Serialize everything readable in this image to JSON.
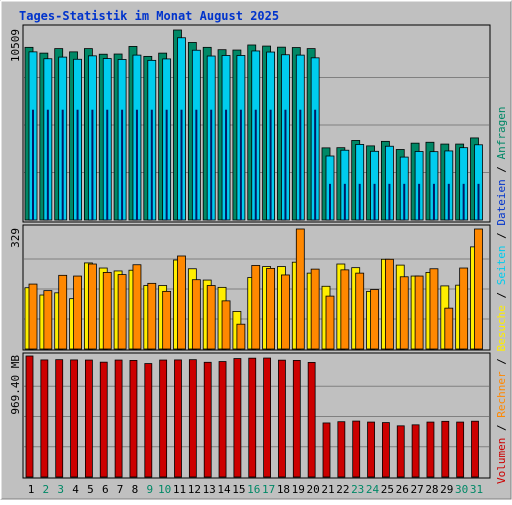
{
  "chart_data": {
    "type": "bar",
    "title": "Tages-Statistik im Monat August 2025",
    "categories": [
      "1",
      "2",
      "3",
      "4",
      "5",
      "6",
      "7",
      "8",
      "9",
      "10",
      "11",
      "12",
      "13",
      "14",
      "15",
      "16",
      "17",
      "18",
      "19",
      "20",
      "21",
      "22",
      "23",
      "24",
      "25",
      "26",
      "27",
      "28",
      "29",
      "30",
      "31"
    ],
    "weekend_days": [
      "2",
      "3",
      "9",
      "10",
      "16",
      "17",
      "23",
      "24",
      "30",
      "31"
    ],
    "grid": true,
    "legend_placement": "right-vertical",
    "legend": [
      {
        "key": "volumen",
        "text": "Volumen",
        "color": "#cc0000"
      },
      {
        "key": "rechner",
        "text": "Rechner",
        "color": "#ff8800"
      },
      {
        "key": "besuche",
        "text": "Besuche",
        "color": "#ffee00"
      },
      {
        "key": "seiten",
        "text": "Seiten",
        "color": "#00ccee"
      },
      {
        "key": "dateien",
        "text": "Dateien",
        "color": "#0033cc"
      },
      {
        "key": "anfragen",
        "text": "Anfragen",
        "color": "#008866"
      }
    ],
    "panels": [
      {
        "name": "requests",
        "max_label": "10509",
        "ylim": [
          0,
          10509
        ],
        "series": [
          {
            "name": "Anfragen",
            "color": "#008866",
            "values": [
              9550,
              9230,
              9480,
              9300,
              9480,
              9170,
              9180,
              9600,
              9050,
              9230,
              10509,
              9820,
              9550,
              9420,
              9400,
              9680,
              9620,
              9560,
              9540,
              9480,
              3990,
              4000,
              4400,
              4100,
              4350,
              3900,
              4250,
              4300,
              4200,
              4200,
              4540
            ]
          },
          {
            "name": "Seiten",
            "color": "#00ccee",
            "values": [
              9300,
              8920,
              9010,
              8890,
              9080,
              8930,
              8880,
              9120,
              8830,
              8910,
              10080,
              9390,
              9070,
              9100,
              9100,
              9350,
              9290,
              9140,
              9120,
              8970,
              3540,
              3860,
              4180,
              3800,
              4080,
              3480,
              3790,
              3780,
              3820,
              4000,
              4160
            ]
          },
          {
            "name": "Dateien",
            "color": "#0033cc",
            "values": [
              6100,
              6100,
              6100,
              6100,
              6100,
              6100,
              6100,
              6100,
              6100,
              6100,
              6100,
              6100,
              6100,
              6100,
              6100,
              6100,
              6100,
              6100,
              6100,
              6100,
              2000,
              2000,
              2000,
              2000,
              2000,
              2000,
              2000,
              2000,
              2000,
              2000,
              2000
            ]
          }
        ]
      },
      {
        "name": "visits",
        "max_label": "329",
        "ylim": [
          0,
          329
        ],
        "series": [
          {
            "name": "Besuche",
            "color": "#ffee00",
            "values": [
              168,
              148,
              154,
              138,
              236,
              222,
              214,
              216,
              174,
              174,
              244,
              220,
              189,
              169,
              103,
              196,
              226,
              226,
              238,
              208,
              172,
              233,
              223,
              158,
              246,
              230,
              200,
              210,
              173,
              175,
              280
            ]
          },
          {
            "name": "Rechner",
            "color": "#ff8800",
            "values": [
              178,
              160,
              202,
              200,
              233,
              210,
              204,
              231,
              180,
              158,
              255,
              190,
              174,
              132,
              68,
              229,
              221,
              203,
              329,
              219,
              145,
              217,
              208,
              163,
              246,
              198,
              200,
              220,
              112,
              222,
              329
            ]
          }
        ]
      },
      {
        "name": "volume",
        "max_label": "969.40 MB",
        "ylim": [
          0,
          969.4
        ],
        "series": [
          {
            "name": "Volumen",
            "color": "#cc0000",
            "values": [
              969.4,
              938,
              940,
              938,
              937,
              920,
              937,
              934,
              909,
              937,
              938,
              940,
              919,
              925,
              949,
              952,
              953,
              936,
              934,
              918,
              433,
              443,
              448,
              440,
              436,
              410,
              418,
              440,
              446,
              440,
              447
            ]
          }
        ]
      }
    ]
  }
}
